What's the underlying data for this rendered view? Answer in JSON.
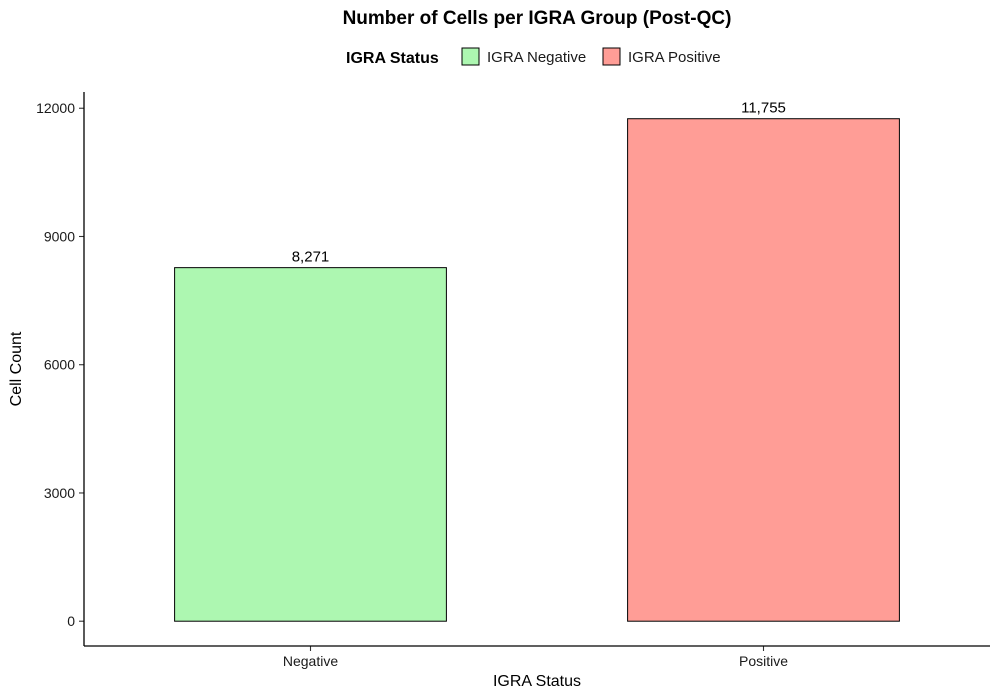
{
  "chart_data": {
    "type": "bar",
    "title": "Number of Cells per IGRA Group (Post-QC)",
    "xlabel": "IGRA Status",
    "ylabel": "Cell Count",
    "categories": [
      "Negative",
      "Positive"
    ],
    "values": [
      8271,
      11755
    ],
    "data_labels": [
      "8,271",
      "11,755"
    ],
    "bar_colors": [
      "#adf7b1",
      "#ff9d96"
    ],
    "ylim": [
      -580,
      12380
    ],
    "yticks": [
      0,
      3000,
      6000,
      9000,
      12000
    ],
    "ytick_labels": [
      "0",
      "3000",
      "6000",
      "9000",
      "12000"
    ],
    "grid": false,
    "legend": {
      "title": "IGRA Status",
      "placement": "top",
      "items": [
        {
          "label": "IGRA Negative",
          "color": "#adf7b1"
        },
        {
          "label": "IGRA Positive",
          "color": "#ff9d96"
        }
      ]
    }
  }
}
